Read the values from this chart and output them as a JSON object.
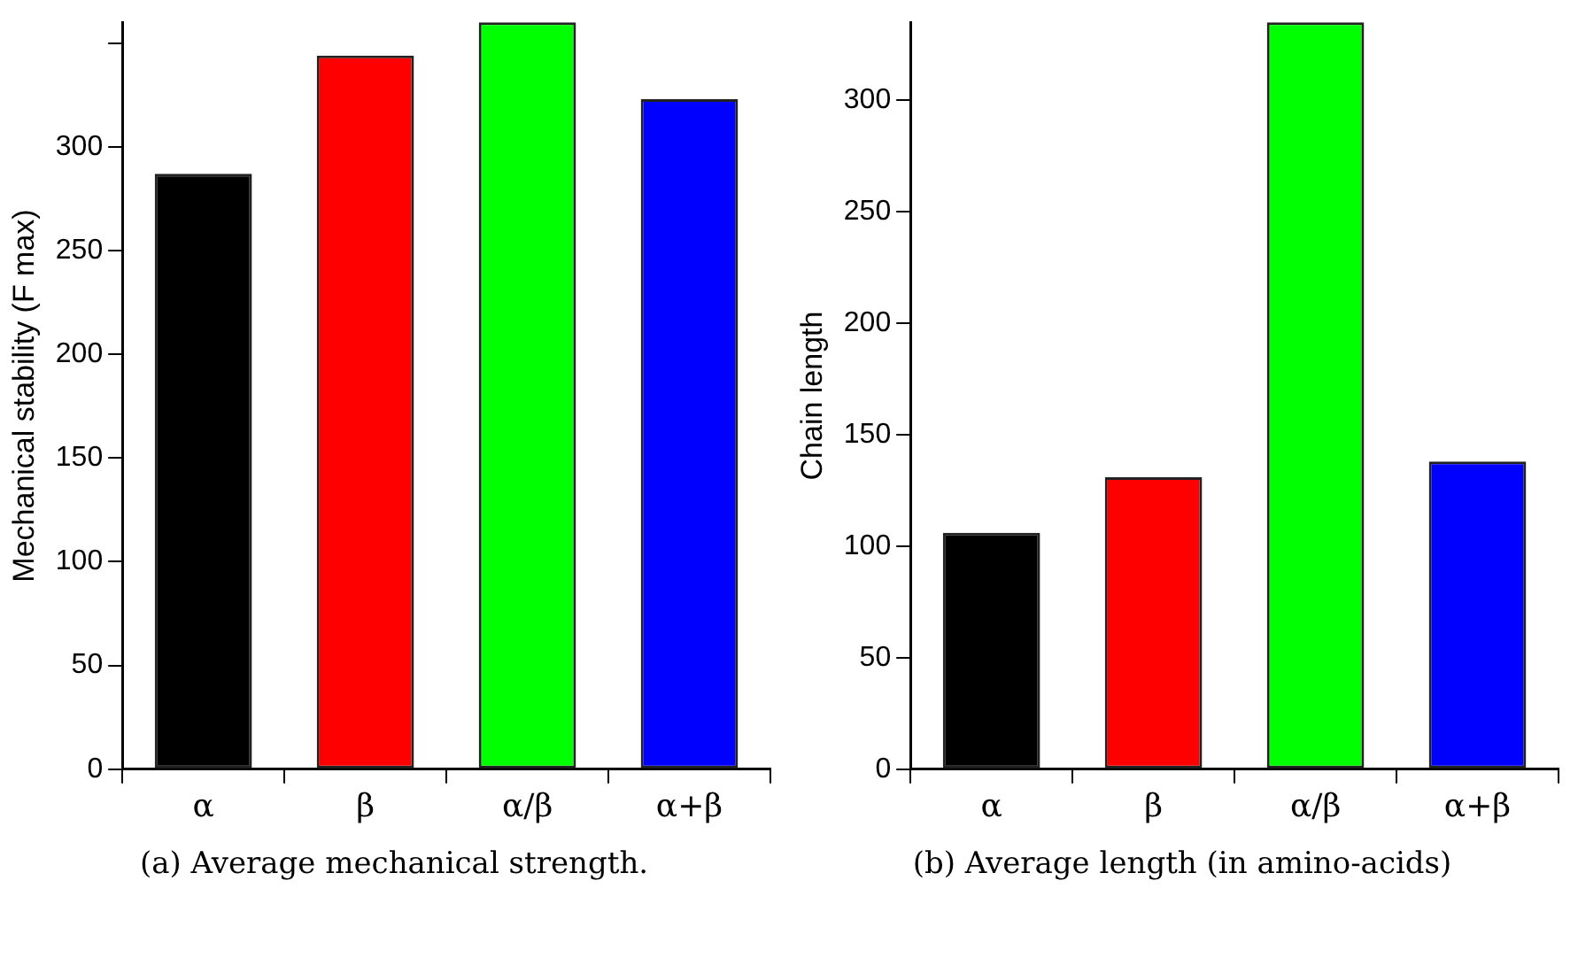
{
  "chart_data": [
    {
      "type": "bar",
      "title": "(a) Average mechanical strength.",
      "ylabel": "Mechanical stability (F max)",
      "categories": [
        "α",
        "β",
        "α/β",
        "α+β"
      ],
      "values": [
        287,
        344,
        360,
        323
      ],
      "colors": [
        "#000000",
        "#ff0000",
        "#00ff00",
        "#0000ff"
      ],
      "ylim": [
        0,
        360
      ],
      "yticks": [
        0,
        50,
        100,
        150,
        200,
        250,
        300,
        {
          "value": 350,
          "label": null
        }
      ],
      "grid": false,
      "legend": false
    },
    {
      "type": "bar",
      "title": "(b) Average length (in amino-acids)",
      "ylabel": "Chain length",
      "categories": [
        "α",
        "β",
        "α/β",
        "α+β"
      ],
      "values": [
        106,
        131,
        335,
        138
      ],
      "colors": [
        "#000000",
        "#ff0000",
        "#00ff00",
        "#0000ff"
      ],
      "ylim": [
        0,
        335
      ],
      "yticks": [
        0,
        50,
        100,
        150,
        200,
        250,
        300
      ],
      "grid": false,
      "legend": false
    }
  ]
}
